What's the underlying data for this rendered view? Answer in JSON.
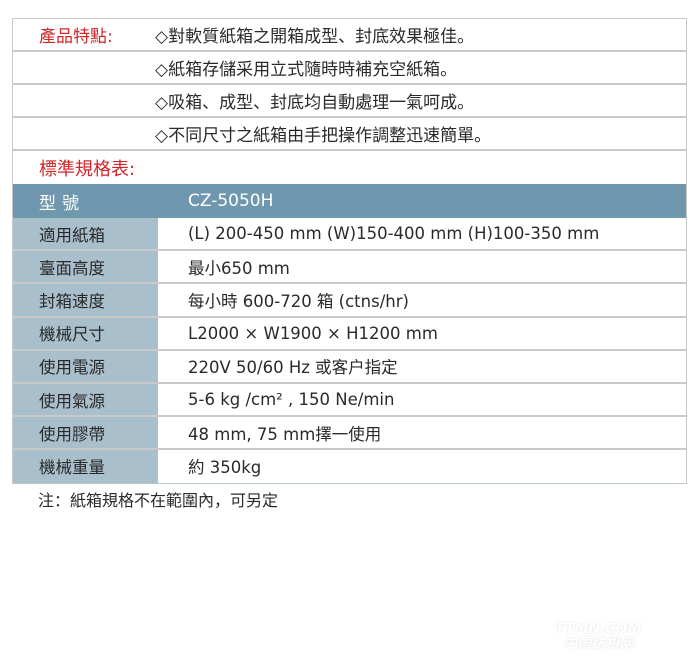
{
  "features": {
    "label": "產品特點:",
    "items": [
      "◇對軟質紙箱之開箱成型、封底效果極佳。",
      "◇紙箱存儲采用立式隨時時補充空紙箱。",
      "◇吸箱、成型、封底均自動處理一氣呵成。",
      "◇不同尺寸之紙箱由手把操作調整迅速簡單。"
    ]
  },
  "spec": {
    "title": "標準規格表:",
    "header": {
      "key": "型號",
      "value": "CZ-5050H"
    },
    "rows": [
      {
        "key": "適用紙箱",
        "value": "(L) 200-450 mm (W)150-400 mm (H)100-350 mm"
      },
      {
        "key": "臺面高度",
        "value": "最小650 mm"
      },
      {
        "key": "封箱速度",
        "value": "每小時 600-720 箱 (ctns/hr)"
      },
      {
        "key": "機械尺寸",
        "value": " L2000 × W1900 × H1200 mm"
      },
      {
        "key": "使用電源",
        "value": "220V  50/60 Hz 或客户指定"
      },
      {
        "key": "使用氣源",
        "value": "5-6 kg /cm²  , 150 Ne/min"
      },
      {
        "key": "使用膠帶",
        "value": "48 mm, 75 mm擇一使用"
      },
      {
        "key": "機械重量",
        "value": "約 350kg"
      }
    ]
  },
  "note": "注：紙箱規格不在範圍內，可另定",
  "watermark": {
    "line1": "TTMN.COM",
    "line2": "中国纺机网"
  },
  "colors": {
    "accent_red": "#d2262a",
    "header_blue": "#6f97ae",
    "key_blue": "#a9bfcc"
  }
}
